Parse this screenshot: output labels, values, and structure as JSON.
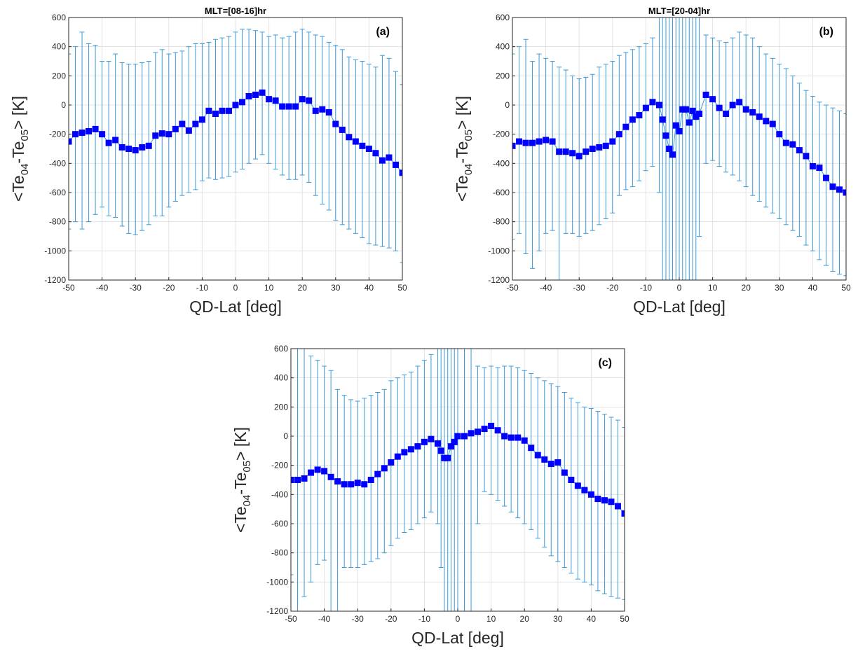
{
  "figure": {
    "colors": {
      "errorbar": "#3a9ad9",
      "marker": "#0000ff",
      "grid": "#e3e3e3",
      "axis": "#262626"
    }
  },
  "chart_data": [
    {
      "type": "scatter",
      "panel_label": "(a)",
      "title": "MLT=[08-16]hr",
      "xlabel": "QD-Lat [deg]",
      "ylabel": "<Te04-Te05> [K]",
      "ylabel_parts": {
        "main": "<Te",
        "sub1": "04",
        "mid": "-Te",
        "sub2": "05",
        "end": "> [K]"
      },
      "xlim": [
        -50,
        50
      ],
      "ylim": [
        -1200,
        600
      ],
      "xticks": [
        -50,
        -40,
        -30,
        -20,
        -10,
        0,
        10,
        20,
        30,
        40,
        50
      ],
      "yticks": [
        -1200,
        -1000,
        -800,
        -600,
        -400,
        -200,
        0,
        200,
        400,
        600
      ],
      "grid": true,
      "x": [
        -50,
        -48,
        -46,
        -44,
        -42,
        -40,
        -38,
        -36,
        -34,
        -32,
        -30,
        -28,
        -26,
        -24,
        -22,
        -20,
        -18,
        -16,
        -14,
        -12,
        -10,
        -8,
        -6,
        -4,
        -2,
        0,
        2,
        4,
        6,
        8,
        10,
        12,
        14,
        16,
        18,
        20,
        22,
        24,
        26,
        28,
        30,
        32,
        34,
        36,
        38,
        40,
        42,
        44,
        46,
        48,
        50
      ],
      "y": [
        -250,
        -200,
        -190,
        -180,
        -165,
        -200,
        -260,
        -240,
        -290,
        -300,
        -310,
        -290,
        -280,
        -210,
        -195,
        -200,
        -165,
        -130,
        -175,
        -130,
        -100,
        -40,
        -60,
        -40,
        -40,
        0,
        20,
        60,
        70,
        85,
        40,
        30,
        -10,
        -10,
        -10,
        40,
        30,
        -40,
        -30,
        -50,
        -130,
        -170,
        -220,
        -250,
        -280,
        -300,
        -330,
        -380,
        -360,
        -410,
        -465
      ],
      "err_upper": [
        350,
        400,
        500,
        420,
        410,
        300,
        300,
        350,
        290,
        280,
        280,
        290,
        300,
        360,
        380,
        350,
        360,
        370,
        400,
        420,
        420,
        430,
        450,
        460,
        470,
        500,
        520,
        520,
        510,
        500,
        470,
        480,
        460,
        470,
        500,
        520,
        500,
        480,
        470,
        430,
        410,
        380,
        330,
        310,
        300,
        280,
        260,
        340,
        320,
        230,
        140
      ],
      "err_lower": [
        -850,
        -800,
        -850,
        -800,
        -750,
        -700,
        -760,
        -770,
        -830,
        -880,
        -890,
        -860,
        -820,
        -760,
        -760,
        -700,
        -660,
        -620,
        -600,
        -580,
        -520,
        -500,
        -510,
        -500,
        -490,
        -460,
        -440,
        -400,
        -370,
        -340,
        -400,
        -440,
        -480,
        -510,
        -510,
        -480,
        -530,
        -620,
        -680,
        -720,
        -790,
        -820,
        -850,
        -880,
        -910,
        -950,
        -960,
        -970,
        -980,
        -1000,
        -1080
      ]
    },
    {
      "type": "scatter",
      "panel_label": "(b)",
      "title": "MLT=[20-04]hr",
      "xlabel": "QD-Lat [deg]",
      "ylabel": "<Te04-Te05> [K]",
      "ylabel_parts": {
        "main": "<Te",
        "sub1": "04",
        "mid": "-Te",
        "sub2": "05",
        "end": "> [K]"
      },
      "xlim": [
        -50,
        50
      ],
      "ylim": [
        -1200,
        600
      ],
      "xticks": [
        -50,
        -40,
        -30,
        -20,
        -10,
        0,
        10,
        20,
        30,
        40,
        50
      ],
      "yticks": [
        -1200,
        -1000,
        -800,
        -600,
        -400,
        -200,
        0,
        200,
        400,
        600
      ],
      "grid": true,
      "x": [
        -50,
        -48,
        -46,
        -44,
        -42,
        -40,
        -38,
        -36,
        -34,
        -32,
        -30,
        -28,
        -26,
        -24,
        -22,
        -20,
        -18,
        -16,
        -14,
        -12,
        -10,
        -8,
        -6,
        -5,
        -4,
        -3,
        -2,
        -1,
        0,
        1,
        2,
        3,
        4,
        5,
        6,
        8,
        10,
        12,
        14,
        16,
        18,
        20,
        22,
        24,
        26,
        28,
        30,
        32,
        34,
        36,
        38,
        40,
        42,
        44,
        46,
        48,
        50
      ],
      "y": [
        -280,
        -250,
        -260,
        -260,
        -250,
        -240,
        -250,
        -320,
        -320,
        -330,
        -350,
        -320,
        -300,
        -290,
        -280,
        -250,
        -200,
        -150,
        -100,
        -70,
        -20,
        20,
        0,
        -100,
        -210,
        -300,
        -340,
        -140,
        -180,
        -30,
        -30,
        -120,
        -40,
        -80,
        -60,
        70,
        40,
        -20,
        -60,
        0,
        20,
        -30,
        -50,
        -80,
        -110,
        -130,
        -200,
        -260,
        -270,
        -310,
        -350,
        -420,
        -430,
        -500,
        -560,
        -580,
        -600
      ],
      "err_upper": [
        350,
        400,
        450,
        300,
        350,
        320,
        300,
        260,
        240,
        200,
        180,
        190,
        210,
        260,
        280,
        300,
        340,
        360,
        380,
        400,
        420,
        460,
        600,
        700,
        750,
        800,
        900,
        950,
        1000,
        900,
        850,
        800,
        750,
        650,
        600,
        480,
        460,
        440,
        430,
        460,
        500,
        480,
        460,
        400,
        350,
        320,
        280,
        250,
        200,
        150,
        100,
        60,
        20,
        0,
        -20,
        -40,
        -60
      ],
      "err_lower": [
        -920,
        -880,
        -1020,
        -1120,
        -1000,
        -880,
        -860,
        -1200,
        -880,
        -880,
        -900,
        -880,
        -860,
        -820,
        -780,
        -740,
        -620,
        -580,
        -560,
        -520,
        -450,
        -420,
        -600,
        -1200,
        -1200,
        -1200,
        -1200,
        -1200,
        -1200,
        -1200,
        -1200,
        -1200,
        -1200,
        -1200,
        -900,
        -400,
        -380,
        -420,
        -460,
        -480,
        -520,
        -560,
        -620,
        -660,
        -700,
        -740,
        -780,
        -820,
        -860,
        -900,
        -960,
        -1000,
        -1060,
        -1100,
        -1140,
        -1160,
        -1170
      ]
    },
    {
      "type": "scatter",
      "panel_label": "(c)",
      "title": "",
      "xlabel": "QD-Lat [deg]",
      "ylabel": "<Te04-Te05> [K]",
      "ylabel_parts": {
        "main": "<Te",
        "sub1": "04",
        "mid": "-Te",
        "sub2": "05",
        "end": "> [K]"
      },
      "xlim": [
        -50,
        50
      ],
      "ylim": [
        -1200,
        600
      ],
      "xticks": [
        -50,
        -40,
        -30,
        -20,
        -10,
        0,
        10,
        20,
        30,
        40,
        50
      ],
      "yticks": [
        -1200,
        -1000,
        -800,
        -600,
        -400,
        -200,
        0,
        200,
        400,
        600
      ],
      "grid": true,
      "x": [
        -50,
        -48,
        -46,
        -44,
        -42,
        -40,
        -38,
        -36,
        -34,
        -32,
        -30,
        -28,
        -26,
        -24,
        -22,
        -20,
        -18,
        -16,
        -14,
        -12,
        -10,
        -8,
        -6,
        -5,
        -4,
        -3,
        -2,
        -1,
        0,
        2,
        4,
        6,
        8,
        10,
        12,
        14,
        16,
        18,
        20,
        22,
        24,
        26,
        28,
        30,
        32,
        34,
        36,
        38,
        40,
        42,
        44,
        46,
        48,
        50
      ],
      "y": [
        -300,
        -300,
        -290,
        -250,
        -230,
        -240,
        -280,
        -310,
        -330,
        -330,
        -320,
        -330,
        -300,
        -260,
        -220,
        -180,
        -140,
        -110,
        -90,
        -70,
        -40,
        -20,
        -50,
        -100,
        -150,
        -150,
        -70,
        -40,
        0,
        0,
        20,
        30,
        50,
        70,
        40,
        0,
        -10,
        -10,
        -30,
        -80,
        -130,
        -160,
        -190,
        -180,
        -250,
        -300,
        -340,
        -370,
        -400,
        -430,
        -440,
        -450,
        -480,
        -530
      ],
      "err_upper": [
        600,
        600,
        600,
        550,
        520,
        480,
        450,
        320,
        280,
        250,
        240,
        260,
        280,
        300,
        320,
        380,
        400,
        420,
        440,
        480,
        520,
        560,
        600,
        700,
        800,
        900,
        1000,
        1000,
        1000,
        900,
        600,
        480,
        470,
        480,
        470,
        480,
        480,
        470,
        450,
        430,
        400,
        380,
        360,
        340,
        300,
        260,
        230,
        200,
        190,
        170,
        150,
        130,
        110,
        60
      ],
      "err_lower": [
        -950,
        -1200,
        -1100,
        -1000,
        -880,
        -850,
        -1200,
        -1200,
        -900,
        -900,
        -900,
        -880,
        -860,
        -840,
        -800,
        -750,
        -700,
        -660,
        -640,
        -600,
        -560,
        -520,
        -600,
        -900,
        -1200,
        -1200,
        -1200,
        -1200,
        -1200,
        -1200,
        -1200,
        -600,
        -380,
        -400,
        -440,
        -480,
        -520,
        -560,
        -600,
        -640,
        -700,
        -760,
        -820,
        -860,
        -900,
        -940,
        -980,
        -1000,
        -1020,
        -1060,
        -1080,
        -1100,
        -1110,
        -1120
      ]
    }
  ]
}
